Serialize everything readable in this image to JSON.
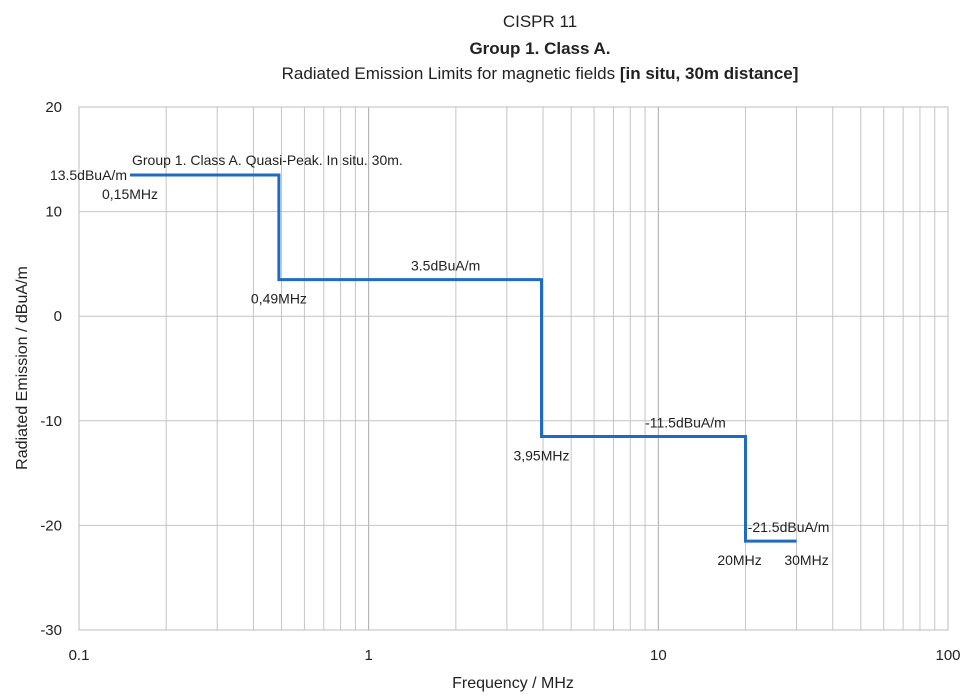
{
  "chart_data": {
    "type": "line",
    "title_line1": "CISPR 11",
    "title_line2": "Group 1. Class A.",
    "title_line3_normal": "Radiated Emission Limits for magnetic fields ",
    "title_line3_bold": "[in situ, 30m distance]",
    "xlabel": "Frequency / MHz",
    "ylabel": "Radiated Emission / dBuA/m",
    "x_scale": "log",
    "xlim": [
      0.1,
      100
    ],
    "ylim": [
      -30,
      20
    ],
    "x_ticks": [
      "0.1",
      "1",
      "10",
      "100"
    ],
    "y_ticks": [
      "20",
      "10",
      "0",
      "-10",
      "-20",
      "-30"
    ],
    "grid": true,
    "series": [
      {
        "name": "Group 1. Class A. Quasi-Peak. In situ. 30m.",
        "color": "#1f6bc0",
        "points": [
          [
            0.15,
            13.5
          ],
          [
            0.49,
            13.5
          ],
          [
            0.49,
            3.5
          ],
          [
            3.95,
            3.5
          ],
          [
            3.95,
            -11.5
          ],
          [
            20,
            -11.5
          ],
          [
            20,
            -21.5
          ],
          [
            30,
            -21.5
          ]
        ]
      }
    ],
    "annotations": [
      {
        "text": "13.5dBuA/m",
        "x": 0.15,
        "y": 13.5,
        "anchor": "left-of"
      },
      {
        "text": "0,15MHz",
        "x": 0.15,
        "y": 13.5,
        "anchor": "below"
      },
      {
        "text": "0,49MHz",
        "x": 0.49,
        "y": 3.5,
        "anchor": "below"
      },
      {
        "text": "3.5dBuA/m",
        "x": 1.4,
        "y": 3.5,
        "anchor": "above"
      },
      {
        "text": "3,95MHz",
        "x": 3.95,
        "y": -11.5,
        "anchor": "below"
      },
      {
        "text": "-11.5dBuA/m",
        "x": 9,
        "y": -11.5,
        "anchor": "above"
      },
      {
        "text": "20MHz",
        "x": 20,
        "y": -21.5,
        "anchor": "below"
      },
      {
        "text": "30MHz",
        "x": 30,
        "y": -21.5,
        "anchor": "below"
      },
      {
        "text": "-21.5dBuA/m",
        "x": 30,
        "y": -21.5,
        "anchor": "above"
      }
    ]
  }
}
